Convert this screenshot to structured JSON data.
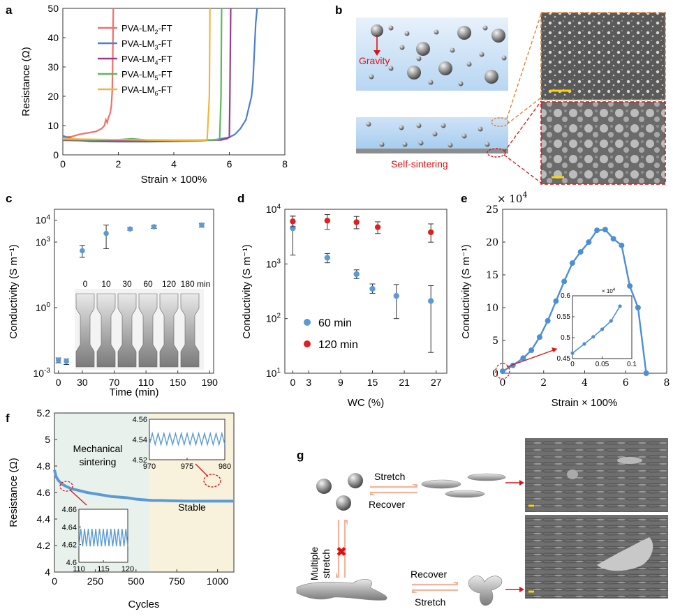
{
  "panels": {
    "a": {
      "letter": "a",
      "chart_data": {
        "type": "line",
        "xlabel": "Strain × 100%",
        "ylabel": "Resistance (Ω)",
        "xlim": [
          0,
          8
        ],
        "ylim": [
          0,
          50
        ],
        "xticks": [
          "0",
          "2",
          "4",
          "6",
          "8"
        ],
        "yticks": [
          "0",
          "10",
          "20",
          "30",
          "40",
          "50"
        ],
        "legend_position": "top-left",
        "series": [
          {
            "name": "PVA-LM2-FT",
            "label_base": "PVA-LM",
            "label_sub": "2",
            "label_end": "-FT",
            "color": "#f2706b",
            "x": [
              0,
              0.3,
              0.6,
              0.9,
              1.2,
              1.4,
              1.5,
              1.55,
              1.6,
              1.65,
              1.7,
              1.72,
              1.75,
              1.78,
              1.8,
              1.82
            ],
            "y": [
              6,
              6.2,
              7,
              7.5,
              8,
              9,
              10,
              12,
              11,
              13,
              14,
              15,
              17,
              22,
              35,
              50
            ]
          },
          {
            "name": "PVA-LM3-FT",
            "label_base": "PVA-LM",
            "label_sub": "3",
            "label_end": "-FT",
            "color": "#4c7fd1",
            "x": [
              0,
              0.5,
              1,
              2,
              3,
              4,
              5,
              5.5,
              6,
              6.2,
              6.4,
              6.6,
              6.7,
              6.8,
              6.85,
              6.9,
              6.95,
              7.0
            ],
            "y": [
              6.5,
              5,
              4.6,
              4.5,
              4.5,
              4.6,
              4.8,
              5.2,
              6,
              7,
              9,
              12,
              16,
              20,
              25,
              35,
              45,
              50
            ]
          },
          {
            "name": "PVA-LM4-FT",
            "label_base": "PVA-LM",
            "label_sub": "4",
            "label_end": "-FT",
            "color": "#9b3a8f",
            "x": [
              0,
              1,
              2,
              3,
              4,
              5,
              5.7,
              5.9,
              6.0,
              6.02,
              6.05
            ],
            "y": [
              5,
              4.8,
              4.8,
              4.8,
              4.9,
              5,
              5.1,
              5.5,
              6,
              20,
              50
            ]
          },
          {
            "name": "PVA-LM5-FT",
            "label_base": "PVA-LM",
            "label_sub": "5",
            "label_end": "-FT",
            "color": "#5cb85c",
            "x": [
              0,
              1,
              2,
              2.5,
              3,
              4,
              5,
              5.5,
              5.65,
              5.7,
              5.72
            ],
            "y": [
              5.2,
              5.1,
              5.2,
              5.5,
              5.1,
              5,
              5,
              5.1,
              5.4,
              20,
              50
            ]
          },
          {
            "name": "PVA-LM6-FT",
            "label_base": "PVA-LM",
            "label_sub": "6",
            "label_end": "-FT",
            "color": "#f4b43c",
            "x": [
              0,
              1,
              2,
              3,
              4,
              5,
              5.2,
              5.28,
              5.3
            ],
            "y": [
              5.5,
              5.3,
              5.2,
              5.1,
              5,
              5,
              5.2,
              20,
              50
            ]
          }
        ]
      }
    },
    "b": {
      "letter": "b",
      "gravity_label": "Gravity",
      "sintering_label": "Self-sintering"
    },
    "c": {
      "letter": "c",
      "inset_time_labels": [
        "0",
        "10",
        "30",
        "60",
        "120",
        "180 min"
      ],
      "chart_data": {
        "type": "scatter",
        "xlabel": "Time (min)",
        "ylabel": "Conductivity (S m⁻¹)",
        "xlim": [
          -5,
          195
        ],
        "yscale": "log",
        "ylim_log": [
          -3,
          4.5
        ],
        "xticks": [
          "0",
          "30",
          "70",
          "110",
          "150",
          "190"
        ],
        "yticks": [
          {
            "base": "10",
            "exp": "-3",
            "value": -3
          },
          {
            "base": "10",
            "exp": "0",
            "value": 0
          },
          {
            "base": "10",
            "exp": "3",
            "value": 3
          },
          {
            "base": "10",
            "exp": "4",
            "value": 4
          }
        ],
        "series": [
          {
            "color": "#5b9bd5",
            "x": [
              0,
              10,
              30,
              60,
              90,
              120,
              180
            ],
            "y": [
              0.004,
              0.0035,
              400,
              2500,
              4000,
              5000,
              6000
            ],
            "err_lo": [
              0.003,
              0.0025,
              200,
              500,
              3500,
              4200,
              4800
            ],
            "err_hi": [
              0.005,
              0.0045,
              700,
              6000,
              4500,
              5800,
              7200
            ]
          }
        ]
      }
    },
    "d": {
      "letter": "d",
      "chart_data": {
        "type": "scatter",
        "xlabel": "WC (%)",
        "ylabel": "Conductivity (S m⁻¹)",
        "xlim": [
          -1.5,
          29
        ],
        "yscale": "log",
        "ylim_log": [
          1,
          4
        ],
        "xticks": [
          "0",
          "3",
          "9",
          "15",
          "21",
          "27"
        ],
        "yticks": [
          {
            "base": "10",
            "exp": "1",
            "value": 1
          },
          {
            "base": "10",
            "exp": "2",
            "value": 2
          },
          {
            "base": "10",
            "exp": "3",
            "value": 3
          },
          {
            "base": "10",
            "exp": "4",
            "value": 4
          }
        ],
        "legend_position": "lower-left",
        "series": [
          {
            "name": "60 min",
            "color": "#5b9bd5",
            "x": [
              0,
              6.5,
              12,
              15,
              19.5,
              26
            ],
            "y": [
              4500,
              1300,
              650,
              350,
              260,
              210
            ],
            "err_lo": [
              1450,
              1050,
              540,
              290,
              100,
              24
            ],
            "err_hi": [
              7500,
              1550,
              780,
              430,
              420,
              400
            ]
          },
          {
            "name": "120 min",
            "color": "#e02020",
            "x": [
              0,
              6.5,
              12,
              16,
              26
            ],
            "y": [
              6000,
              6200,
              5800,
              4700,
              3800
            ],
            "err_lo": [
              4800,
              4300,
              4400,
              3600,
              2500
            ],
            "err_hi": [
              7500,
              8000,
              7400,
              5900,
              5400
            ]
          }
        ]
      }
    },
    "e": {
      "letter": "e",
      "multiplier_base": "× 10",
      "multiplier_exp": "4",
      "chart_data": {
        "type": "line",
        "xlabel": "Strain × 100%",
        "ylabel": "Conductivity (S m⁻¹)",
        "xlim": [
          0,
          8
        ],
        "ylim": [
          0,
          25
        ],
        "xticks": [
          "0",
          "2",
          "4",
          "6",
          "8"
        ],
        "yticks": [
          "0",
          "5",
          "10",
          "15",
          "20",
          "25"
        ],
        "series": [
          {
            "color": "#4c8fd6",
            "x": [
              0,
              0.5,
              1,
              1.4,
              1.8,
              2.2,
              2.6,
              3.0,
              3.4,
              3.8,
              4.2,
              4.6,
              5.0,
              5.4,
              5.8,
              6.2,
              6.6,
              7.0
            ],
            "y": [
              0.3,
              1.2,
              2.3,
              3.5,
              5.5,
              8,
              11,
              14,
              16.8,
              18.5,
              20,
              21.8,
              21.9,
              20.5,
              19.5,
              13.3,
              10,
              0
            ]
          }
        ],
        "inset": {
          "multiplier_base": "× 10",
          "multiplier_exp": "4",
          "xlim": [
            0,
            0.1
          ],
          "ylim": [
            0.45,
            0.6
          ],
          "xticks": [
            "0",
            "0.05",
            "0.1"
          ],
          "yticks": [
            "0.45",
            "0.5",
            "0.55",
            "0.6"
          ],
          "x": [
            0,
            0.02,
            0.035,
            0.05,
            0.065,
            0.08
          ],
          "y": [
            0.463,
            0.485,
            0.502,
            0.52,
            0.54,
            0.575
          ]
        }
      }
    },
    "f": {
      "letter": "f",
      "region1_label_line1": "Mechanical",
      "region1_label_line2": "sintering",
      "region2_label": "Stable",
      "chart_data": {
        "type": "line",
        "xlabel": "Cycles",
        "ylabel": "Resistance (Ω)",
        "xlim": [
          0,
          1100
        ],
        "ylim": [
          4,
          5.2
        ],
        "xticks": [
          "0",
          "250",
          "500",
          "750",
          "1000"
        ],
        "yticks": [
          "4",
          "4.2",
          "4.4",
          "4.6",
          "4.8",
          "5",
          "5.2"
        ],
        "regions": [
          {
            "from": 0,
            "to": 580,
            "color": "#e8f1ec"
          },
          {
            "from": 580,
            "to": 1100,
            "color": "#f8f1dc"
          }
        ],
        "series": [
          {
            "color": "#5b9bd5",
            "x": [
              0,
              10,
              25,
              50,
              75,
              100,
              150,
              200,
              250,
              300,
              350,
              400,
              450,
              500,
              550,
              600,
              650,
              700,
              750,
              800,
              850,
              900,
              950,
              1000,
              1050,
              1100
            ],
            "y": [
              4.77,
              4.72,
              4.69,
              4.66,
              4.645,
              4.63,
              4.615,
              4.6,
              4.59,
              4.58,
              4.57,
              4.565,
              4.56,
              4.55,
              4.545,
              4.54,
              4.54,
              4.538,
              4.537,
              4.536,
              4.535,
              4.535,
              4.535,
              4.535,
              4.535,
              4.535
            ]
          }
        ],
        "inset_right": {
          "xlim": [
            970,
            980
          ],
          "ylim": [
            4.52,
            4.56
          ],
          "xticks": [
            "970",
            "975",
            "980"
          ],
          "yticks": [
            "4.52",
            "4.54",
            "4.56"
          ],
          "low": 4.535,
          "high": 4.546
        },
        "inset_left": {
          "xlim": [
            110,
            120
          ],
          "ylim": [
            4.6,
            4.66
          ],
          "xticks": [
            "110",
            "115",
            "120"
          ],
          "yticks": [
            "4.6",
            "4.62",
            "4.64",
            "4.66"
          ],
          "low": 4.618,
          "high": 4.638
        }
      }
    },
    "g": {
      "letter": "g",
      "stretch_label": "Stretch",
      "recover_label": "Recover",
      "multiple_label_line1": "Multiple",
      "multiple_label_line2": "stretch",
      "recover_label_2": "Recover",
      "stretch_label_2": "Stretch"
    }
  }
}
